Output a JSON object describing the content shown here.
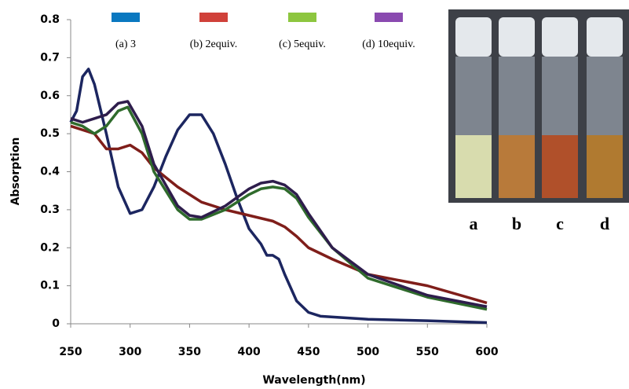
{
  "chart_data": {
    "type": "line",
    "x_label": "Wavelength(nm)",
    "y_label": "Absorption",
    "xlim": [
      250,
      600
    ],
    "xticks": [
      250,
      300,
      350,
      400,
      450,
      500,
      550,
      600
    ],
    "ylim": [
      0,
      0.8
    ],
    "yticks": [
      0,
      0.1,
      0.2,
      0.3,
      0.4,
      0.5,
      0.6,
      0.7,
      0.8
    ],
    "grid": false,
    "photo_labels": [
      "a",
      "b",
      "c",
      "d"
    ],
    "series": [
      {
        "name": "(a) 3",
        "color": "#1c2660",
        "legend_color": "#0a78c0",
        "x": [
          250,
          255,
          260,
          265,
          270,
          280,
          290,
          300,
          310,
          320,
          330,
          340,
          350,
          360,
          370,
          380,
          390,
          400,
          410,
          415,
          420,
          425,
          430,
          440,
          450,
          460,
          500,
          550,
          600
        ],
        "values": [
          0.53,
          0.56,
          0.65,
          0.67,
          0.63,
          0.5,
          0.36,
          0.29,
          0.3,
          0.36,
          0.44,
          0.51,
          0.55,
          0.55,
          0.5,
          0.42,
          0.33,
          0.25,
          0.21,
          0.18,
          0.18,
          0.17,
          0.13,
          0.06,
          0.03,
          0.02,
          0.012,
          0.008,
          0.003
        ]
      },
      {
        "name": "(b) 2equiv.",
        "color": "#7f1e1a",
        "legend_color": "#d0413a",
        "x": [
          250,
          270,
          280,
          290,
          300,
          310,
          320,
          340,
          360,
          380,
          400,
          420,
          430,
          440,
          450,
          470,
          500,
          550,
          600
        ],
        "values": [
          0.52,
          0.5,
          0.46,
          0.46,
          0.47,
          0.45,
          0.41,
          0.36,
          0.32,
          0.3,
          0.285,
          0.27,
          0.255,
          0.23,
          0.2,
          0.17,
          0.13,
          0.1,
          0.055
        ]
      },
      {
        "name": "(c) 5equiv.",
        "color": "#2f6b2c",
        "legend_color": "#8dc63f",
        "x": [
          250,
          260,
          270,
          280,
          290,
          298,
          310,
          320,
          340,
          350,
          360,
          380,
          400,
          410,
          420,
          430,
          440,
          450,
          470,
          500,
          550,
          600
        ],
        "values": [
          0.53,
          0.52,
          0.5,
          0.52,
          0.56,
          0.57,
          0.5,
          0.4,
          0.3,
          0.275,
          0.275,
          0.3,
          0.34,
          0.355,
          0.36,
          0.355,
          0.33,
          0.28,
          0.2,
          0.12,
          0.07,
          0.038
        ]
      },
      {
        "name": "(d) 10equiv.",
        "color": "#2e1d4c",
        "legend_color": "#8a4ab0",
        "x": [
          250,
          260,
          270,
          280,
          290,
          298,
          310,
          320,
          340,
          350,
          360,
          380,
          400,
          410,
          420,
          430,
          440,
          450,
          470,
          500,
          550,
          600
        ],
        "values": [
          0.54,
          0.53,
          0.54,
          0.55,
          0.58,
          0.585,
          0.52,
          0.42,
          0.31,
          0.285,
          0.28,
          0.31,
          0.355,
          0.37,
          0.375,
          0.365,
          0.34,
          0.29,
          0.2,
          0.13,
          0.075,
          0.045
        ]
      }
    ]
  }
}
